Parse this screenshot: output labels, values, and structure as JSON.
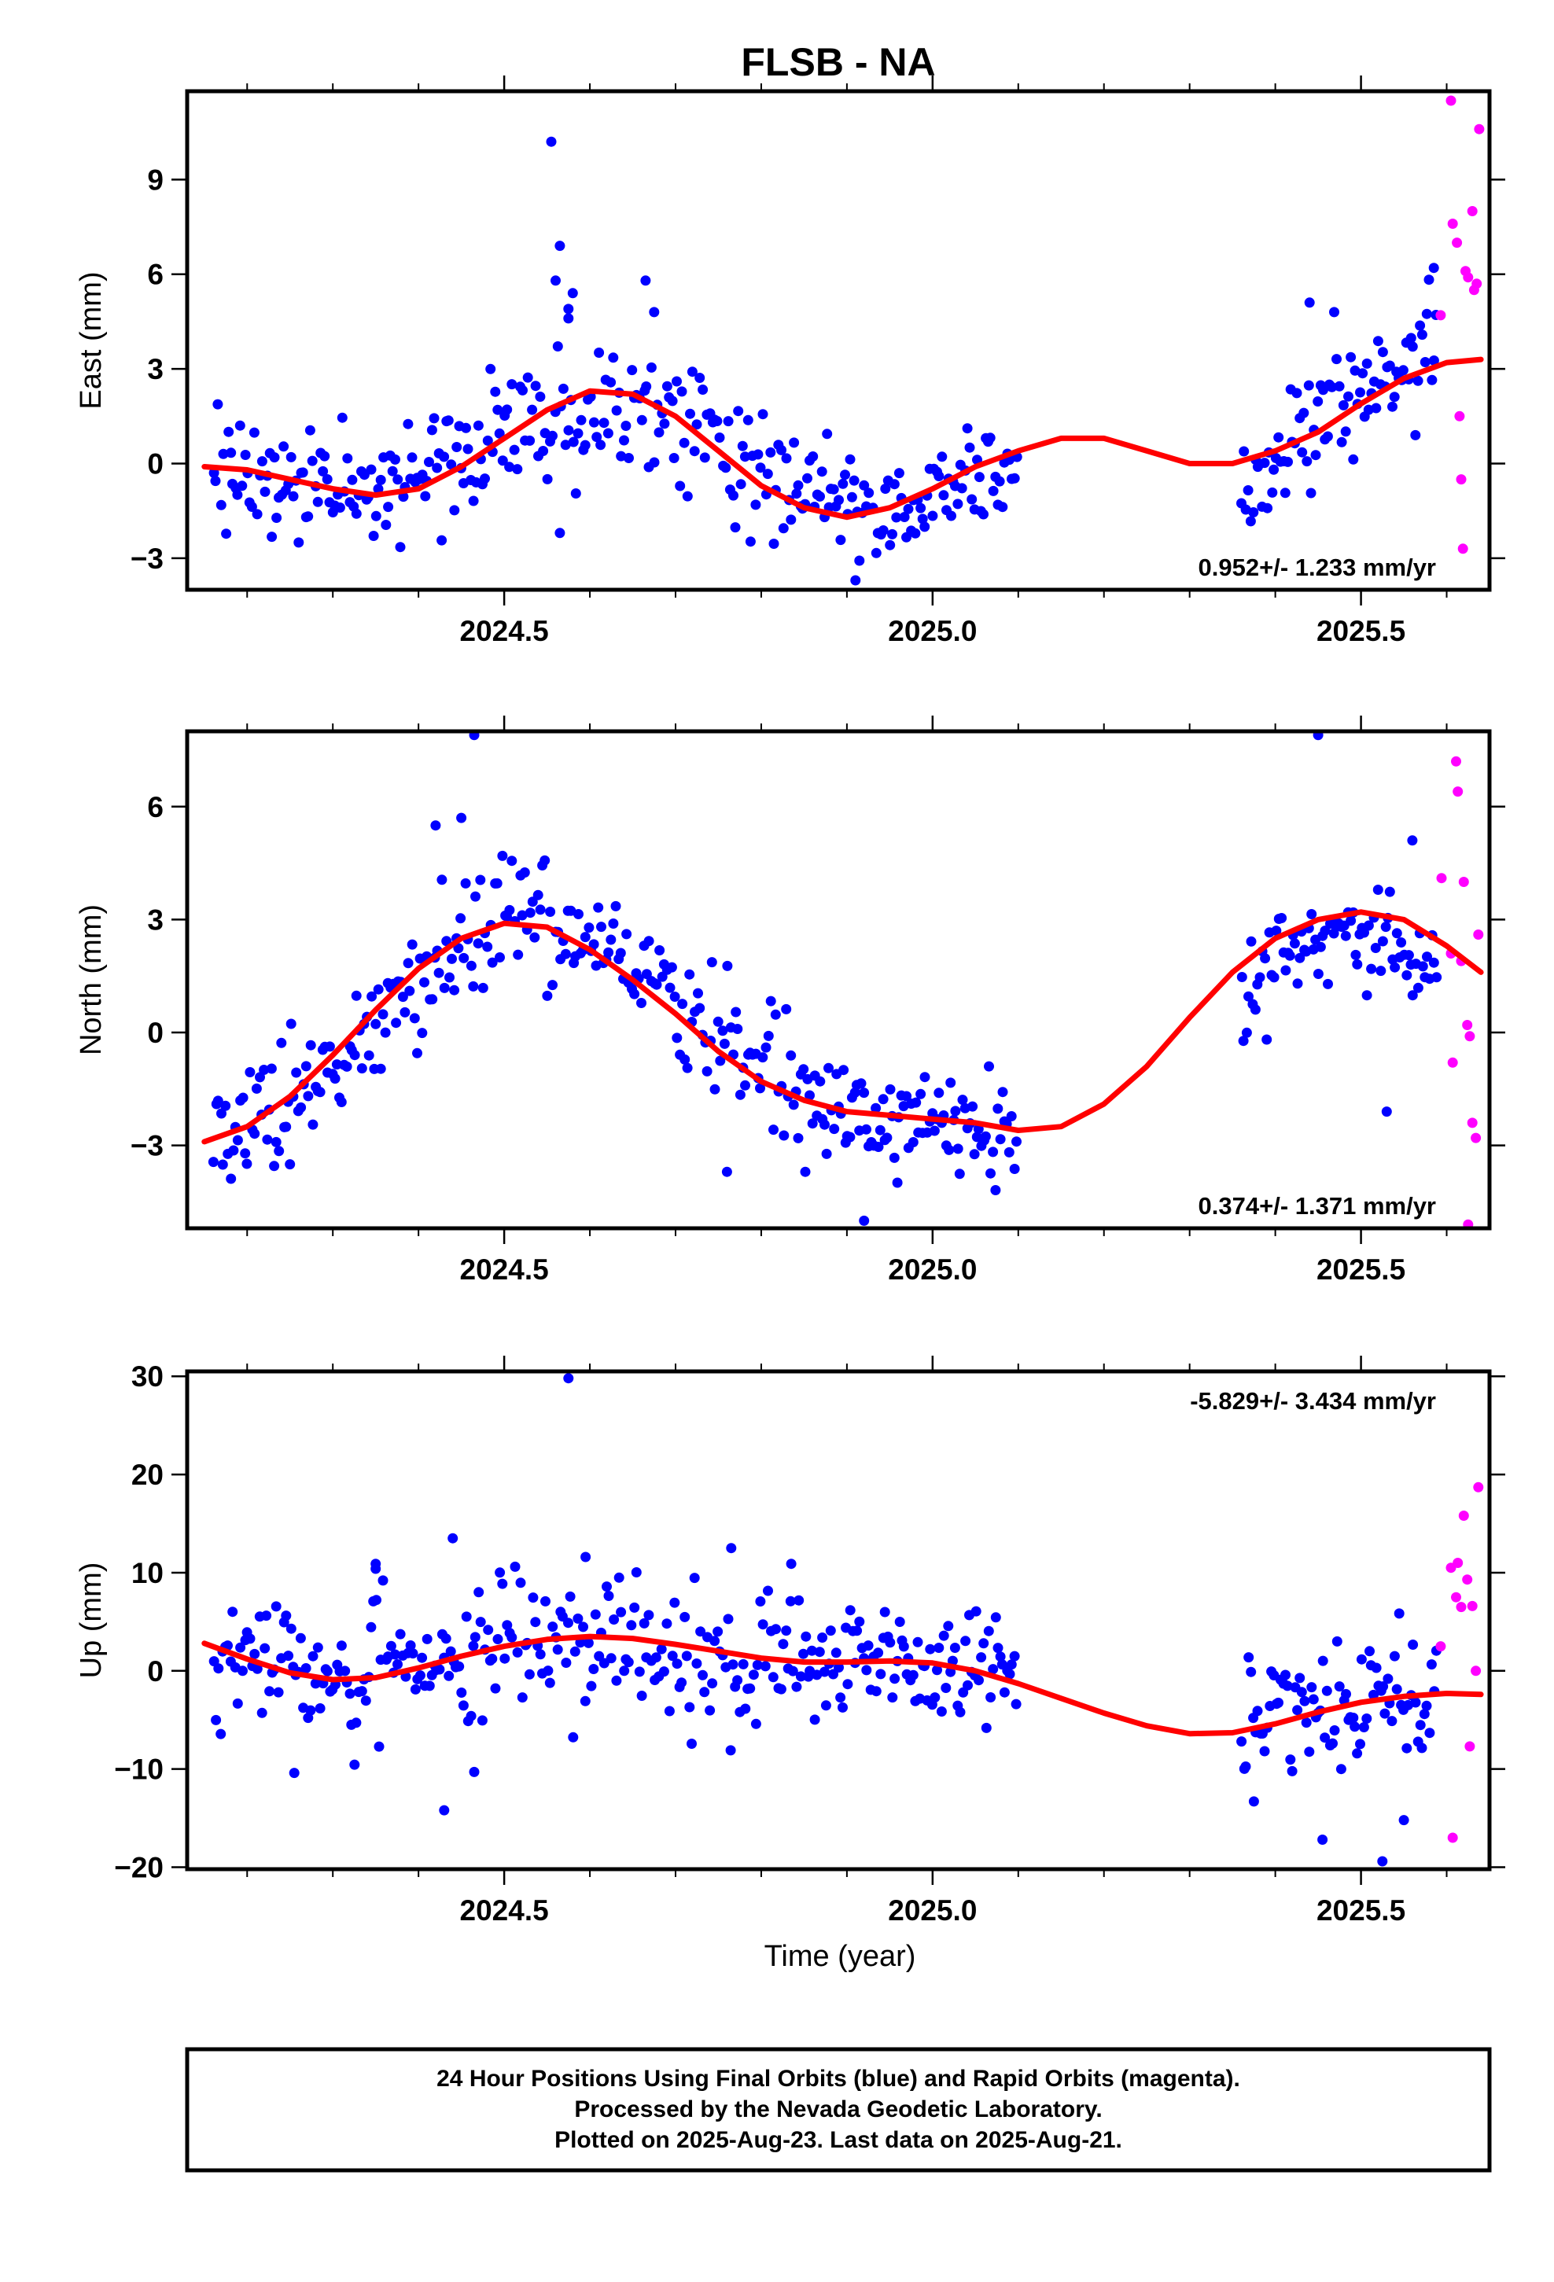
{
  "title": "FLSB - NA",
  "x_axis": {
    "label": "Time (year)",
    "range": [
      2024.13,
      2025.65
    ],
    "major_ticks": [
      2024.5,
      2025.0,
      2025.5
    ],
    "tick_labels": [
      "2024.5",
      "2025.0",
      "2025.5"
    ],
    "minor_step": 0.1
  },
  "colors": {
    "final": "#0000ff",
    "rapid": "#ff00ff",
    "model": "#ff0000",
    "frame": "#000000"
  },
  "caption": [
    "24 Hour Positions Using Final Orbits (blue) and Rapid Orbits (magenta).",
    "Processed by the Nevada Geodetic Laboratory.",
    "Plotted on 2025-Aug-23. Last data on 2025-Aug-21."
  ],
  "chart_data": [
    {
      "type": "scatter",
      "ylabel": "East (mm)",
      "ylim": [
        -4,
        11.8
      ],
      "yticks": [
        -3,
        0,
        3,
        6,
        9
      ],
      "ytick_labels": [
        "−3",
        "0",
        "3",
        "6",
        "9"
      ],
      "rate_label": "0.952+/- 1.233 mm/yr",
      "rate_position": "bottom-right",
      "final_segments": [
        {
          "start": 2024.16,
          "end": 2024.5,
          "mean": [
            [
              2024.16,
              0.2
            ],
            [
              2024.3,
              -0.7
            ],
            [
              2024.4,
              -0.6
            ],
            [
              2024.5,
              1.0
            ]
          ],
          "spread": 1.3,
          "n": 120,
          "seed": 11
        },
        {
          "start": 2024.5,
          "end": 2024.84,
          "mean": [
            [
              2024.5,
              1.0
            ],
            [
              2024.62,
              1.9
            ],
            [
              2024.7,
              1.4
            ],
            [
              2024.84,
              -0.8
            ]
          ],
          "spread": 1.35,
          "n": 115,
          "seed": 12
        },
        {
          "start": 2024.84,
          "end": 2025.1,
          "mean": [
            [
              2024.84,
              -1.0
            ],
            [
              2024.93,
              -1.5
            ],
            [
              2025.05,
              -0.5
            ],
            [
              2025.1,
              -0.3
            ]
          ],
          "spread": 1.0,
          "n": 95,
          "seed": 13
        },
        {
          "start": 2025.36,
          "end": 2025.59,
          "mean": [
            [
              2025.36,
              -0.6
            ],
            [
              2025.45,
              1.5
            ],
            [
              2025.59,
              3.7
            ]
          ],
          "spread": 1.4,
          "n": 85,
          "seed": 14
        }
      ],
      "final_outliers": [
        [
          2024.555,
          10.2
        ],
        [
          2024.565,
          6.9
        ],
        [
          2024.56,
          5.8
        ],
        [
          2024.58,
          5.4
        ],
        [
          2024.575,
          4.9
        ],
        [
          2024.575,
          4.6
        ],
        [
          2024.665,
          5.8
        ],
        [
          2024.675,
          4.8
        ],
        [
          2024.91,
          -3.7
        ],
        [
          2024.565,
          -2.2
        ],
        [
          2025.44,
          5.1
        ],
        [
          2025.585,
          6.2
        ]
      ],
      "rapid_points": [
        [
          2025.593,
          4.7
        ],
        [
          2025.605,
          11.5
        ],
        [
          2025.607,
          7.6
        ],
        [
          2025.612,
          7.0
        ],
        [
          2025.615,
          1.5
        ],
        [
          2025.617,
          -0.5
        ],
        [
          2025.619,
          -2.7
        ],
        [
          2025.622,
          6.1
        ],
        [
          2025.625,
          5.9
        ],
        [
          2025.63,
          8.0
        ],
        [
          2025.632,
          5.5
        ],
        [
          2025.635,
          5.7
        ],
        [
          2025.638,
          10.6
        ]
      ],
      "model_curve": [
        [
          2024.15,
          -0.1
        ],
        [
          2024.2,
          -0.2
        ],
        [
          2024.25,
          -0.5
        ],
        [
          2024.3,
          -0.8
        ],
        [
          2024.35,
          -1.0
        ],
        [
          2024.4,
          -0.8
        ],
        [
          2024.45,
          -0.1
        ],
        [
          2024.5,
          0.8
        ],
        [
          2024.55,
          1.7
        ],
        [
          2024.6,
          2.3
        ],
        [
          2024.65,
          2.2
        ],
        [
          2024.7,
          1.5
        ],
        [
          2024.75,
          0.4
        ],
        [
          2024.8,
          -0.7
        ],
        [
          2024.85,
          -1.4
        ],
        [
          2024.9,
          -1.7
        ],
        [
          2024.95,
          -1.4
        ],
        [
          2025.0,
          -0.8
        ],
        [
          2025.05,
          -0.1
        ],
        [
          2025.1,
          0.4
        ],
        [
          2025.15,
          0.8
        ],
        [
          2025.2,
          0.8
        ],
        [
          2025.25,
          0.4
        ],
        [
          2025.3,
          0.0
        ],
        [
          2025.35,
          0.0
        ],
        [
          2025.4,
          0.4
        ],
        [
          2025.45,
          1.0
        ],
        [
          2025.5,
          1.9
        ],
        [
          2025.55,
          2.7
        ],
        [
          2025.6,
          3.2
        ],
        [
          2025.64,
          3.3
        ]
      ]
    },
    {
      "type": "scatter",
      "ylabel": "North (mm)",
      "ylim": [
        -5.2,
        8.0
      ],
      "yticks": [
        -3,
        0,
        3,
        6
      ],
      "ytick_labels": [
        "−3",
        "0",
        "3",
        "6"
      ],
      "rate_label": "0.374+/- 1.371 mm/yr",
      "rate_position": "bottom-right",
      "final_segments": [
        {
          "start": 2024.16,
          "end": 2024.5,
          "mean": [
            [
              2024.16,
              -2.9
            ],
            [
              2024.28,
              -1.4
            ],
            [
              2024.4,
              1.6
            ],
            [
              2024.5,
              3.3
            ]
          ],
          "spread": 1.1,
          "n": 120,
          "seed": 21
        },
        {
          "start": 2024.5,
          "end": 2024.84,
          "mean": [
            [
              2024.5,
              3.3
            ],
            [
              2024.6,
              2.7
            ],
            [
              2024.72,
              0.5
            ],
            [
              2024.84,
              -1.3
            ]
          ],
          "spread": 1.0,
          "n": 115,
          "seed": 22
        },
        {
          "start": 2024.84,
          "end": 2025.1,
          "mean": [
            [
              2024.84,
              -1.8
            ],
            [
              2024.95,
              -2.5
            ],
            [
              2025.1,
              -2.6
            ]
          ],
          "spread": 0.95,
          "n": 95,
          "seed": 23
        },
        {
          "start": 2025.36,
          "end": 2025.59,
          "mean": [
            [
              2025.36,
              0.9
            ],
            [
              2025.46,
              2.7
            ],
            [
              2025.59,
              2.2
            ]
          ],
          "spread": 0.9,
          "n": 85,
          "seed": 24
        }
      ],
      "final_outliers": [
        [
          2024.465,
          7.9
        ],
        [
          2024.42,
          5.5
        ],
        [
          2024.45,
          5.7
        ],
        [
          2024.25,
          -3.5
        ],
        [
          2024.76,
          -3.7
        ],
        [
          2024.92,
          -5.0
        ],
        [
          2025.53,
          -2.1
        ],
        [
          2025.56,
          5.1
        ],
        [
          2025.45,
          7.9
        ]
      ],
      "rapid_points": [
        [
          2025.594,
          4.1
        ],
        [
          2025.605,
          2.1
        ],
        [
          2025.607,
          -0.8
        ],
        [
          2025.611,
          7.2
        ],
        [
          2025.613,
          6.4
        ],
        [
          2025.617,
          1.9
        ],
        [
          2025.62,
          4.0
        ],
        [
          2025.624,
          0.2
        ],
        [
          2025.627,
          -0.1
        ],
        [
          2025.63,
          -2.4
        ],
        [
          2025.634,
          -2.8
        ],
        [
          2025.637,
          2.6
        ],
        [
          2025.625,
          -5.1
        ]
      ],
      "model_curve": [
        [
          2024.15,
          -2.9
        ],
        [
          2024.2,
          -2.5
        ],
        [
          2024.25,
          -1.7
        ],
        [
          2024.3,
          -0.6
        ],
        [
          2024.35,
          0.6
        ],
        [
          2024.4,
          1.7
        ],
        [
          2024.45,
          2.5
        ],
        [
          2024.5,
          2.9
        ],
        [
          2024.55,
          2.8
        ],
        [
          2024.6,
          2.2
        ],
        [
          2024.65,
          1.4
        ],
        [
          2024.7,
          0.5
        ],
        [
          2024.75,
          -0.5
        ],
        [
          2024.8,
          -1.3
        ],
        [
          2024.85,
          -1.8
        ],
        [
          2024.9,
          -2.1
        ],
        [
          2024.95,
          -2.2
        ],
        [
          2025.0,
          -2.3
        ],
        [
          2025.05,
          -2.4
        ],
        [
          2025.1,
          -2.6
        ],
        [
          2025.15,
          -2.5
        ],
        [
          2025.2,
          -1.9
        ],
        [
          2025.25,
          -0.9
        ],
        [
          2025.3,
          0.4
        ],
        [
          2025.35,
          1.6
        ],
        [
          2025.4,
          2.5
        ],
        [
          2025.45,
          3.0
        ],
        [
          2025.5,
          3.2
        ],
        [
          2025.55,
          3.0
        ],
        [
          2025.6,
          2.3
        ],
        [
          2025.64,
          1.6
        ]
      ]
    },
    {
      "type": "scatter",
      "ylabel": "Up (mm)",
      "ylim": [
        -20.2,
        30.5
      ],
      "yticks": [
        -20,
        -10,
        0,
        10,
        20,
        30
      ],
      "ytick_labels": [
        "−20",
        "−10",
        "0",
        "10",
        "20",
        "30"
      ],
      "xlabel": "Time (year)",
      "rate_label": "-5.829+/- 3.434 mm/yr",
      "rate_position": "top-right",
      "final_segments": [
        {
          "start": 2024.16,
          "end": 2024.5,
          "mean": [
            [
              2024.16,
              1.5
            ],
            [
              2024.3,
              -0.8
            ],
            [
              2024.4,
              0.5
            ],
            [
              2024.5,
              1.8
            ]
          ],
          "spread": 4.5,
          "n": 120,
          "seed": 31
        },
        {
          "start": 2024.5,
          "end": 2024.84,
          "mean": [
            [
              2024.5,
              2.0
            ],
            [
              2024.6,
              2.5
            ],
            [
              2024.72,
              1.5
            ],
            [
              2024.84,
              0.8
            ]
          ],
          "spread": 4.3,
          "n": 115,
          "seed": 32
        },
        {
          "start": 2024.84,
          "end": 2025.1,
          "mean": [
            [
              2024.84,
              1.0
            ],
            [
              2024.95,
              0.5
            ],
            [
              2025.1,
              0.0
            ]
          ],
          "spread": 3.8,
          "n": 95,
          "seed": 33
        },
        {
          "start": 2025.36,
          "end": 2025.59,
          "mean": [
            [
              2025.36,
              -6.0
            ],
            [
              2025.45,
              -3.5
            ],
            [
              2025.59,
              -2.5
            ]
          ],
          "spread": 4.5,
          "n": 85,
          "seed": 34
        }
      ],
      "final_outliers": [
        [
          2024.575,
          29.8
        ],
        [
          2024.44,
          13.5
        ],
        [
          2024.765,
          12.5
        ],
        [
          2024.595,
          11.6
        ],
        [
          2024.35,
          10.9
        ],
        [
          2024.35,
          10.4
        ],
        [
          2024.835,
          10.9
        ],
        [
          2024.43,
          -14.2
        ],
        [
          2024.465,
          -10.3
        ],
        [
          2025.455,
          -17.2
        ],
        [
          2025.525,
          -19.4
        ],
        [
          2025.375,
          -13.3
        ],
        [
          2024.255,
          -10.4
        ],
        [
          2025.55,
          -15.2
        ]
      ],
      "rapid_points": [
        [
          2025.593,
          2.5
        ],
        [
          2025.605,
          10.5
        ],
        [
          2025.607,
          -17.0
        ],
        [
          2025.611,
          7.5
        ],
        [
          2025.613,
          11.0
        ],
        [
          2025.617,
          6.5
        ],
        [
          2025.62,
          15.8
        ],
        [
          2025.624,
          9.3
        ],
        [
          2025.627,
          -7.7
        ],
        [
          2025.63,
          6.6
        ],
        [
          2025.634,
          0.0
        ],
        [
          2025.637,
          18.7
        ]
      ],
      "model_curve": [
        [
          2024.15,
          2.8
        ],
        [
          2024.2,
          1.2
        ],
        [
          2024.25,
          -0.2
        ],
        [
          2024.3,
          -0.9
        ],
        [
          2024.35,
          -0.7
        ],
        [
          2024.4,
          0.3
        ],
        [
          2024.45,
          1.5
        ],
        [
          2024.5,
          2.5
        ],
        [
          2024.55,
          3.2
        ],
        [
          2024.6,
          3.5
        ],
        [
          2024.65,
          3.3
        ],
        [
          2024.7,
          2.7
        ],
        [
          2024.75,
          2.0
        ],
        [
          2024.8,
          1.3
        ],
        [
          2024.85,
          0.9
        ],
        [
          2024.9,
          0.9
        ],
        [
          2024.95,
          1.0
        ],
        [
          2025.0,
          0.8
        ],
        [
          2025.05,
          0.0
        ],
        [
          2025.1,
          -1.3
        ],
        [
          2025.15,
          -2.8
        ],
        [
          2025.2,
          -4.3
        ],
        [
          2025.25,
          -5.6
        ],
        [
          2025.3,
          -6.4
        ],
        [
          2025.35,
          -6.3
        ],
        [
          2025.4,
          -5.4
        ],
        [
          2025.45,
          -4.2
        ],
        [
          2025.5,
          -3.2
        ],
        [
          2025.55,
          -2.6
        ],
        [
          2025.6,
          -2.3
        ],
        [
          2025.64,
          -2.4
        ]
      ]
    }
  ]
}
